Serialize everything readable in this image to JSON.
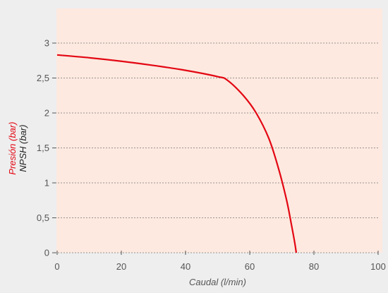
{
  "chart_data": {
    "type": "line",
    "xlabel": "Caudal (l/min)",
    "ylabels": [
      {
        "text": "Presión (bar)",
        "color": "#e30613"
      },
      {
        "text": "NPSH (bar)",
        "color": "#222222"
      }
    ],
    "xlim": [
      0,
      100
    ],
    "ylim": [
      0,
      3.5
    ],
    "x_ticks": [
      0,
      20,
      40,
      60,
      80,
      100
    ],
    "x_tick_labels": [
      "0",
      "20",
      "40",
      "60",
      "80",
      "100"
    ],
    "y_ticks": [
      0,
      0.5,
      1,
      1.5,
      2,
      2.5,
      3
    ],
    "y_tick_labels": [
      "0",
      "0,5",
      "1",
      "1,5",
      "2",
      "2,5",
      "3"
    ],
    "grid": "horizontal-dashed",
    "colors": {
      "plot_background": "#fde9df",
      "page_background": "#eeeeee",
      "presion_line": "#e30613",
      "grid_line": "#777777",
      "axis_line": "#555555"
    },
    "series": [
      {
        "color": "#e30613",
        "x": [
          0,
          10,
          20,
          30,
          40,
          50,
          53,
          58,
          62,
          66,
          69,
          71.5,
          73,
          74,
          74.5
        ],
        "y": [
          2.83,
          2.79,
          2.74,
          2.68,
          2.61,
          2.52,
          2.47,
          2.25,
          2.0,
          1.63,
          1.2,
          0.75,
          0.4,
          0.15,
          0
        ]
      }
    ]
  }
}
